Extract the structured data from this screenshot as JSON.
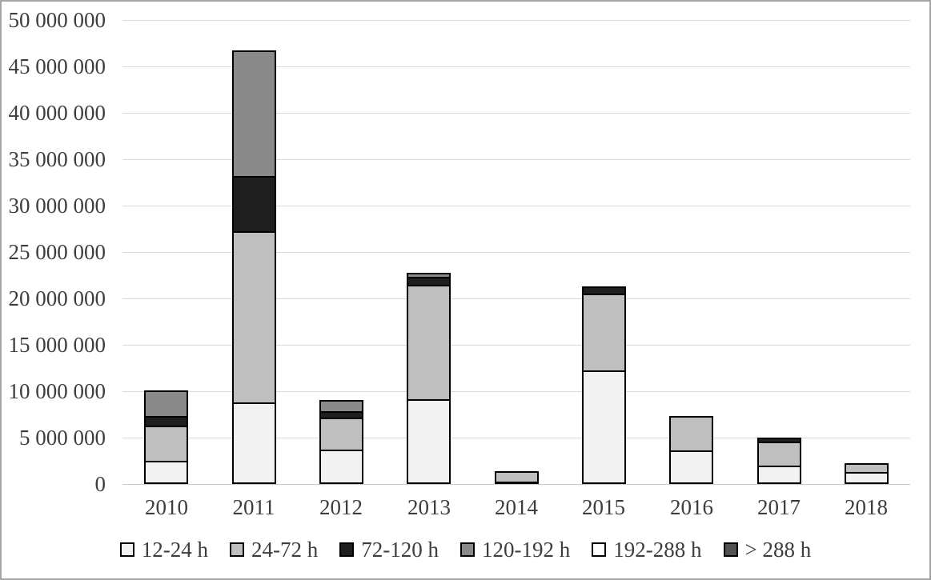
{
  "chart_data": {
    "type": "bar",
    "stacked": true,
    "title": "",
    "xlabel": "",
    "ylabel": "",
    "categories": [
      "2010",
      "2011",
      "2012",
      "2013",
      "2014",
      "2015",
      "2016",
      "2017",
      "2018"
    ],
    "series": [
      {
        "name": "12-24 h",
        "color": "#f2f2f2",
        "values": [
          2500000,
          8800000,
          3700000,
          9100000,
          300000,
          12200000,
          3600000,
          2000000,
          1300000
        ]
      },
      {
        "name": "24-72 h",
        "color": "#bfbfbf",
        "values": [
          3800000,
          18400000,
          3450000,
          12400000,
          1100000,
          8300000,
          3700000,
          2550000,
          950000
        ]
      },
      {
        "name": "72-120 h",
        "color": "#1f1f1f",
        "values": [
          1000000,
          6000000,
          700000,
          800000,
          0,
          800000,
          0,
          450000,
          0
        ]
      },
      {
        "name": "120-192 h",
        "color": "#8a8a8a",
        "values": [
          2800000,
          13500000,
          1200000,
          500000,
          0,
          0,
          0,
          0,
          0
        ]
      },
      {
        "name": "192-288 h",
        "color": "#ffffff",
        "values": [
          0,
          0,
          0,
          0,
          0,
          0,
          0,
          0,
          0
        ]
      },
      {
        "name": "> 288 h",
        "color": "#525252",
        "values": [
          0,
          0,
          0,
          0,
          0,
          0,
          0,
          0,
          0
        ]
      }
    ],
    "ylim": [
      0,
      50000000
    ],
    "y_tick_interval": 5000000,
    "y_tick_labels": [
      "0",
      "5 000 000",
      "10 000 000",
      "15 000 000",
      "20 000 000",
      "25 000 000",
      "30 000 000",
      "35 000 000",
      "40 000 000",
      "45 000 000",
      "50 000 000"
    ],
    "grid": "horizontal",
    "legend_position": "bottom"
  },
  "styles": {
    "background": "#ffffff",
    "frame_border": "#a6a6a6",
    "gridline": "#d9d9d9",
    "axis_line": "#c8c8c8",
    "segment_border": "#000000",
    "text": "#3d3d3d"
  }
}
